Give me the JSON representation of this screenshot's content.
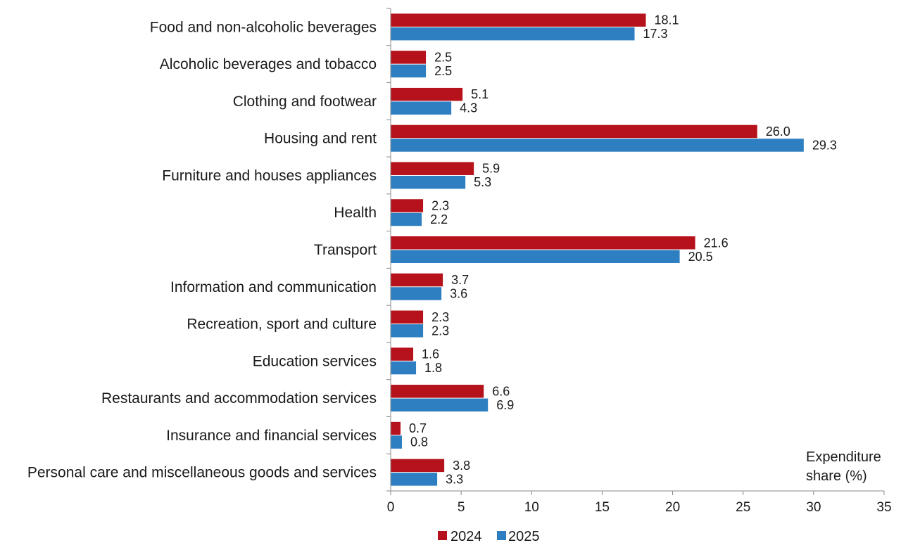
{
  "chart_data": {
    "type": "bar",
    "orientation": "horizontal",
    "categories": [
      "Food and non-alcoholic beverages",
      "Alcoholic beverages and tobacco",
      "Clothing and footwear",
      "Housing and rent",
      "Furniture and houses appliances",
      "Health",
      "Transport",
      "Information and communication",
      "Recreation, sport and culture",
      "Education services",
      "Restaurants and accommodation services",
      "Insurance and financial services",
      "Personal care and miscellaneous goods and services"
    ],
    "series": [
      {
        "name": "2024",
        "color": "#b5121b",
        "values": [
          18.1,
          2.5,
          5.1,
          26.0,
          5.9,
          2.3,
          21.6,
          3.7,
          2.3,
          1.6,
          6.6,
          0.7,
          3.8
        ]
      },
      {
        "name": "2025",
        "color": "#2e7fc1",
        "values": [
          17.3,
          2.5,
          4.3,
          29.3,
          5.3,
          2.2,
          20.5,
          3.6,
          2.3,
          1.8,
          6.9,
          0.8,
          3.3
        ]
      }
    ],
    "x_ticks": [
      "0",
      "5",
      "10",
      "15",
      "20",
      "25",
      "30",
      "35"
    ],
    "xlim": [
      0,
      35
    ],
    "xlabel_lines": [
      "Expenditure",
      "share (%)"
    ],
    "legend_position": "bottom",
    "grid": false
  }
}
